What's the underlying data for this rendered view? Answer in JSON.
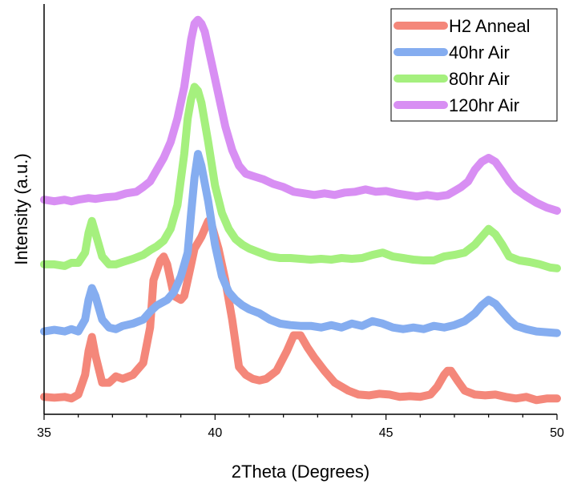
{
  "chart_data": {
    "type": "line",
    "xlabel": "2Theta (Degrees)",
    "ylabel": "Intensity (a.u.)",
    "xlim": [
      35,
      50
    ],
    "ylim": [
      0,
      520
    ],
    "x_ticks": [
      "35",
      "40",
      "45",
      "50"
    ],
    "legend": "top-right",
    "grid": false,
    "y_tick_labels": false,
    "series": [
      {
        "name": "H2 Anneal",
        "color": "#f4877a",
        "points": [
          [
            35.0,
            22
          ],
          [
            35.3,
            21
          ],
          [
            35.6,
            22
          ],
          [
            35.8,
            20
          ],
          [
            36.0,
            25
          ],
          [
            36.2,
            50
          ],
          [
            36.3,
            80
          ],
          [
            36.4,
            98
          ],
          [
            36.5,
            75
          ],
          [
            36.7,
            40
          ],
          [
            36.9,
            40
          ],
          [
            37.1,
            48
          ],
          [
            37.3,
            45
          ],
          [
            37.6,
            50
          ],
          [
            37.9,
            65
          ],
          [
            38.1,
            110
          ],
          [
            38.2,
            170
          ],
          [
            38.4,
            195
          ],
          [
            38.5,
            200
          ],
          [
            38.6,
            190
          ],
          [
            38.8,
            150
          ],
          [
            39.0,
            145
          ],
          [
            39.1,
            150
          ],
          [
            39.3,
            190
          ],
          [
            39.4,
            210
          ],
          [
            39.6,
            225
          ],
          [
            39.8,
            245
          ],
          [
            39.9,
            240
          ],
          [
            40.1,
            210
          ],
          [
            40.3,
            170
          ],
          [
            40.5,
            120
          ],
          [
            40.7,
            60
          ],
          [
            40.9,
            50
          ],
          [
            41.1,
            45
          ],
          [
            41.3,
            43
          ],
          [
            41.5,
            45
          ],
          [
            41.8,
            55
          ],
          [
            42.1,
            80
          ],
          [
            42.3,
            100
          ],
          [
            42.5,
            100
          ],
          [
            42.7,
            85
          ],
          [
            42.9,
            72
          ],
          [
            43.2,
            55
          ],
          [
            43.5,
            40
          ],
          [
            43.9,
            30
          ],
          [
            44.2,
            25
          ],
          [
            44.5,
            24
          ],
          [
            44.8,
            26
          ],
          [
            45.1,
            25
          ],
          [
            45.4,
            22
          ],
          [
            45.7,
            23
          ],
          [
            46.0,
            22
          ],
          [
            46.3,
            25
          ],
          [
            46.5,
            35
          ],
          [
            46.7,
            50
          ],
          [
            46.8,
            55
          ],
          [
            46.9,
            55
          ],
          [
            47.1,
            42
          ],
          [
            47.3,
            30
          ],
          [
            47.6,
            25
          ],
          [
            47.9,
            24
          ],
          [
            48.2,
            25
          ],
          [
            48.5,
            22
          ],
          [
            48.8,
            20
          ],
          [
            49.1,
            22
          ],
          [
            49.4,
            18
          ],
          [
            49.7,
            20
          ],
          [
            50.0,
            20
          ]
        ]
      },
      {
        "name": "40hr Air",
        "color": "#85adf0",
        "points": [
          [
            35.0,
            105
          ],
          [
            35.3,
            107
          ],
          [
            35.6,
            105
          ],
          [
            35.8,
            108
          ],
          [
            36.0,
            105
          ],
          [
            36.2,
            120
          ],
          [
            36.3,
            145
          ],
          [
            36.4,
            160
          ],
          [
            36.5,
            150
          ],
          [
            36.7,
            120
          ],
          [
            36.9,
            110
          ],
          [
            37.1,
            108
          ],
          [
            37.3,
            112
          ],
          [
            37.6,
            115
          ],
          [
            37.9,
            120
          ],
          [
            38.1,
            130
          ],
          [
            38.3,
            138
          ],
          [
            38.6,
            145
          ],
          [
            38.8,
            155
          ],
          [
            39.0,
            175
          ],
          [
            39.2,
            205
          ],
          [
            39.3,
            255
          ],
          [
            39.4,
            300
          ],
          [
            39.5,
            330
          ],
          [
            39.6,
            315
          ],
          [
            39.8,
            270
          ],
          [
            40.0,
            215
          ],
          [
            40.2,
            175
          ],
          [
            40.4,
            155
          ],
          [
            40.6,
            145
          ],
          [
            40.8,
            138
          ],
          [
            41.0,
            133
          ],
          [
            41.3,
            128
          ],
          [
            41.6,
            120
          ],
          [
            41.9,
            115
          ],
          [
            42.2,
            113
          ],
          [
            42.5,
            112
          ],
          [
            42.8,
            112
          ],
          [
            43.1,
            110
          ],
          [
            43.4,
            113
          ],
          [
            43.7,
            110
          ],
          [
            44.0,
            115
          ],
          [
            44.3,
            112
          ],
          [
            44.6,
            118
          ],
          [
            44.9,
            115
          ],
          [
            45.2,
            110
          ],
          [
            45.5,
            108
          ],
          [
            45.8,
            110
          ],
          [
            46.1,
            108
          ],
          [
            46.4,
            112
          ],
          [
            46.7,
            110
          ],
          [
            47.0,
            113
          ],
          [
            47.3,
            118
          ],
          [
            47.6,
            128
          ],
          [
            47.8,
            138
          ],
          [
            48.0,
            145
          ],
          [
            48.2,
            140
          ],
          [
            48.4,
            130
          ],
          [
            48.6,
            120
          ],
          [
            48.8,
            112
          ],
          [
            49.1,
            108
          ],
          [
            49.4,
            105
          ],
          [
            49.7,
            104
          ],
          [
            50.0,
            103
          ]
        ]
      },
      {
        "name": "80hr Air",
        "color": "#a5f07e",
        "points": [
          [
            35.0,
            190
          ],
          [
            35.3,
            190
          ],
          [
            35.6,
            188
          ],
          [
            35.8,
            192
          ],
          [
            36.0,
            192
          ],
          [
            36.2,
            205
          ],
          [
            36.3,
            230
          ],
          [
            36.4,
            245
          ],
          [
            36.5,
            230
          ],
          [
            36.7,
            200
          ],
          [
            36.9,
            190
          ],
          [
            37.1,
            190
          ],
          [
            37.3,
            193
          ],
          [
            37.6,
            197
          ],
          [
            37.9,
            202
          ],
          [
            38.1,
            208
          ],
          [
            38.3,
            213
          ],
          [
            38.5,
            220
          ],
          [
            38.7,
            235
          ],
          [
            38.9,
            265
          ],
          [
            39.1,
            330
          ],
          [
            39.2,
            375
          ],
          [
            39.3,
            400
          ],
          [
            39.4,
            415
          ],
          [
            39.5,
            410
          ],
          [
            39.6,
            395
          ],
          [
            39.8,
            345
          ],
          [
            40.0,
            290
          ],
          [
            40.2,
            255
          ],
          [
            40.4,
            235
          ],
          [
            40.6,
            222
          ],
          [
            40.8,
            215
          ],
          [
            41.0,
            210
          ],
          [
            41.3,
            205
          ],
          [
            41.6,
            200
          ],
          [
            41.9,
            198
          ],
          [
            42.2,
            198
          ],
          [
            42.5,
            197
          ],
          [
            42.8,
            196
          ],
          [
            43.1,
            197
          ],
          [
            43.4,
            196
          ],
          [
            43.7,
            198
          ],
          [
            44.0,
            197
          ],
          [
            44.3,
            198
          ],
          [
            44.6,
            202
          ],
          [
            44.9,
            205
          ],
          [
            45.2,
            200
          ],
          [
            45.5,
            198
          ],
          [
            45.8,
            196
          ],
          [
            46.1,
            195
          ],
          [
            46.4,
            195
          ],
          [
            46.7,
            200
          ],
          [
            47.0,
            202
          ],
          [
            47.3,
            205
          ],
          [
            47.6,
            215
          ],
          [
            47.8,
            225
          ],
          [
            48.0,
            235
          ],
          [
            48.2,
            228
          ],
          [
            48.4,
            215
          ],
          [
            48.6,
            200
          ],
          [
            48.9,
            195
          ],
          [
            49.2,
            193
          ],
          [
            49.5,
            190
          ],
          [
            49.8,
            186
          ],
          [
            50.0,
            185
          ]
        ]
      },
      {
        "name": "120hr Air",
        "color": "#d88ff3",
        "points": [
          [
            35.0,
            272
          ],
          [
            35.3,
            270
          ],
          [
            35.6,
            272
          ],
          [
            35.8,
            270
          ],
          [
            36.0,
            272
          ],
          [
            36.3,
            274
          ],
          [
            36.5,
            273
          ],
          [
            36.8,
            275
          ],
          [
            37.1,
            276
          ],
          [
            37.4,
            280
          ],
          [
            37.7,
            282
          ],
          [
            37.9,
            288
          ],
          [
            38.1,
            295
          ],
          [
            38.3,
            310
          ],
          [
            38.5,
            325
          ],
          [
            38.7,
            345
          ],
          [
            38.9,
            375
          ],
          [
            39.1,
            415
          ],
          [
            39.2,
            445
          ],
          [
            39.3,
            475
          ],
          [
            39.4,
            495
          ],
          [
            39.5,
            500
          ],
          [
            39.6,
            495
          ],
          [
            39.7,
            485
          ],
          [
            39.9,
            445
          ],
          [
            40.1,
            405
          ],
          [
            40.3,
            365
          ],
          [
            40.5,
            335
          ],
          [
            40.7,
            315
          ],
          [
            40.9,
            305
          ],
          [
            41.1,
            302
          ],
          [
            41.4,
            298
          ],
          [
            41.7,
            292
          ],
          [
            42.0,
            288
          ],
          [
            42.3,
            282
          ],
          [
            42.6,
            280
          ],
          [
            42.9,
            278
          ],
          [
            43.2,
            280
          ],
          [
            43.5,
            278
          ],
          [
            43.8,
            281
          ],
          [
            44.1,
            282
          ],
          [
            44.4,
            285
          ],
          [
            44.7,
            282
          ],
          [
            45.0,
            283
          ],
          [
            45.3,
            280
          ],
          [
            45.6,
            278
          ],
          [
            45.9,
            276
          ],
          [
            46.2,
            278
          ],
          [
            46.5,
            276
          ],
          [
            46.8,
            278
          ],
          [
            47.0,
            283
          ],
          [
            47.2,
            288
          ],
          [
            47.4,
            295
          ],
          [
            47.6,
            310
          ],
          [
            47.8,
            320
          ],
          [
            48.0,
            325
          ],
          [
            48.2,
            320
          ],
          [
            48.4,
            308
          ],
          [
            48.6,
            295
          ],
          [
            48.8,
            285
          ],
          [
            49.1,
            276
          ],
          [
            49.4,
            268
          ],
          [
            49.7,
            262
          ],
          [
            50.0,
            258
          ]
        ]
      }
    ]
  }
}
